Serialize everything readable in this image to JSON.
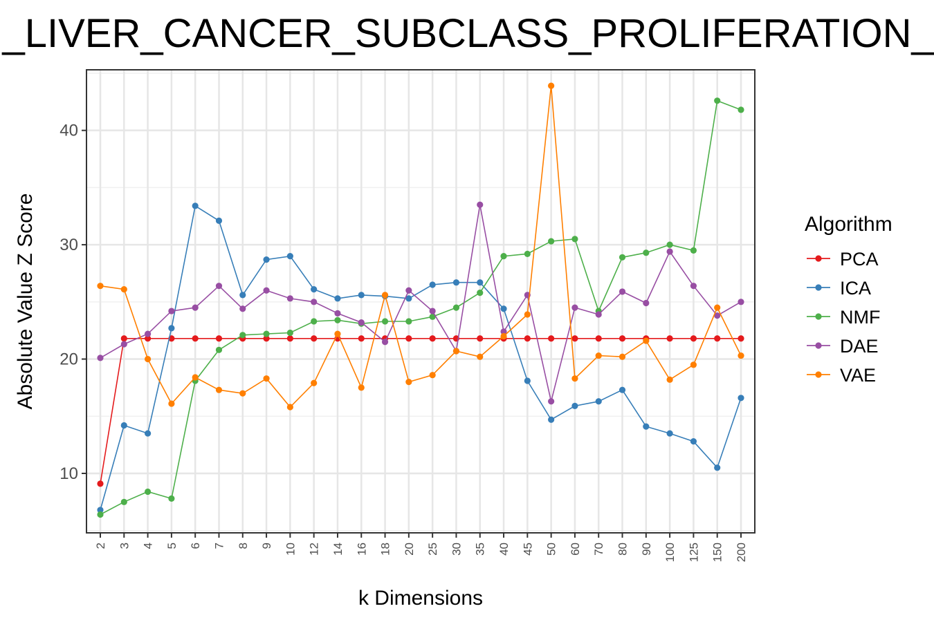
{
  "chart_data": {
    "type": "line",
    "title": "G_LIVER_CANCER_SUBCLASS_PROLIFERATION_D",
    "xlabel": "k Dimensions",
    "ylabel": "Absolute Value Z Score",
    "x_type": "categorical",
    "categories": [
      "2",
      "3",
      "4",
      "5",
      "6",
      "7",
      "8",
      "9",
      "10",
      "12",
      "14",
      "16",
      "18",
      "20",
      "25",
      "30",
      "35",
      "40",
      "45",
      "50",
      "60",
      "70",
      "80",
      "90",
      "100",
      "125",
      "150",
      "200"
    ],
    "ylim": [
      4.8,
      45.3
    ],
    "yticks": [
      10,
      20,
      30,
      40
    ],
    "grid": true,
    "legend": {
      "title": "Algorithm",
      "position": "right"
    },
    "series": [
      {
        "name": "PCA",
        "color": "#e41a1c",
        "values": [
          9.1,
          21.8,
          21.8,
          21.8,
          21.8,
          21.8,
          21.8,
          21.8,
          21.8,
          21.8,
          21.8,
          21.8,
          21.8,
          21.8,
          21.8,
          21.8,
          21.8,
          21.8,
          21.8,
          21.8,
          21.8,
          21.8,
          21.8,
          21.8,
          21.8,
          21.8,
          21.8,
          21.8
        ]
      },
      {
        "name": "ICA",
        "color": "#377eb8",
        "values": [
          6.8,
          14.2,
          13.5,
          22.7,
          33.4,
          32.1,
          25.6,
          28.7,
          29.0,
          26.1,
          25.3,
          25.6,
          25.5,
          25.3,
          26.5,
          26.7,
          26.7,
          24.4,
          18.1,
          14.7,
          15.9,
          16.3,
          17.3,
          14.1,
          13.5,
          12.8,
          10.5,
          16.6
        ]
      },
      {
        "name": "NMF",
        "color": "#4daf4a",
        "values": [
          6.4,
          7.5,
          8.4,
          7.8,
          18.1,
          20.8,
          22.1,
          22.2,
          22.3,
          23.3,
          23.4,
          23.1,
          23.3,
          23.3,
          23.7,
          24.5,
          25.8,
          29.0,
          29.2,
          30.3,
          30.5,
          24.2,
          28.9,
          29.3,
          30.0,
          29.5,
          42.6,
          41.8
        ]
      },
      {
        "name": "DAE",
        "color": "#984ea3",
        "values": [
          20.1,
          21.3,
          22.2,
          24.2,
          24.5,
          26.4,
          24.4,
          26.0,
          25.3,
          25.0,
          24.0,
          23.2,
          21.5,
          26.0,
          24.2,
          20.7,
          33.5,
          22.4,
          25.6,
          16.3,
          24.5,
          23.9,
          25.9,
          24.9,
          29.4,
          26.4,
          23.8,
          25.0
        ]
      },
      {
        "name": "VAE",
        "color": "#ff7f00",
        "values": [
          26.4,
          26.1,
          20.0,
          16.1,
          18.4,
          17.3,
          17.0,
          18.3,
          15.8,
          17.9,
          22.2,
          17.5,
          25.6,
          18.0,
          18.6,
          20.7,
          20.2,
          22.0,
          23.9,
          43.9,
          18.3,
          20.3,
          20.2,
          21.6,
          18.2,
          19.5,
          24.5,
          20.3
        ]
      }
    ]
  }
}
